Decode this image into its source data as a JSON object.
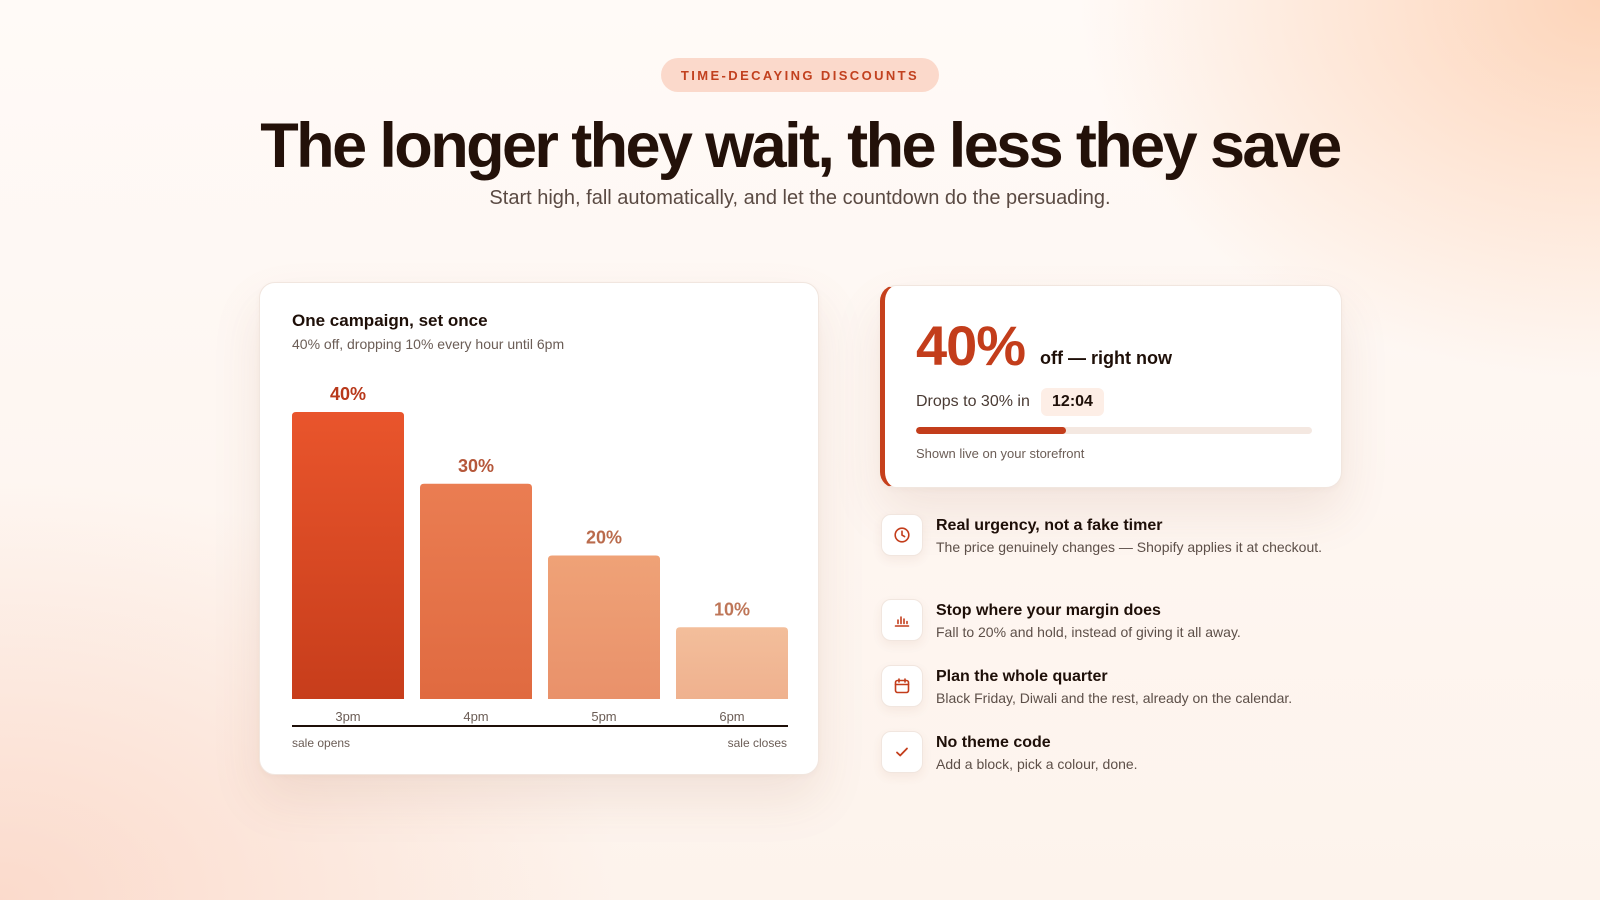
{
  "header": {
    "eyebrow": "TIME-DECAYING DISCOUNTS",
    "headline": "The longer they wait, the less they save",
    "subhead": "Start high, fall automatically, and let the countdown do the persuading."
  },
  "chart_card": {
    "title": "One campaign, set once",
    "subtitle": "40% off, dropping 10% every hour until 6pm",
    "footer_left": "sale opens",
    "footer_right": "sale closes"
  },
  "chart_data": {
    "type": "bar",
    "categories": [
      "3pm",
      "4pm",
      "5pm",
      "6pm"
    ],
    "values": [
      40,
      30,
      20,
      10
    ],
    "value_labels": [
      "40%",
      "30%",
      "20%",
      "10%"
    ],
    "title": "One campaign, set once",
    "subtitle": "40% off, dropping 10% every hour until 6pm",
    "xlabel": "",
    "ylabel": "",
    "ylim": [
      0,
      40
    ],
    "grid": false,
    "colors": {
      "bars_top": [
        "#e9552c",
        "#ea7d52",
        "#efa277",
        "#f3be9b"
      ],
      "bars_bottom": [
        "#c73d1b",
        "#e06a40",
        "#e9916a",
        "#efb18e"
      ],
      "labels": [
        "#b8381a",
        "#b5573a",
        "#ba6b4c",
        "#be7658"
      ]
    }
  },
  "live_card": {
    "percent": "40%",
    "off_label": "off — right now",
    "drops_label": "Drops to 30% in",
    "timer": "12:04",
    "progress": 0.38,
    "note": "Shown live on your storefront"
  },
  "features": [
    {
      "icon": "clock-icon",
      "title": "Real urgency, not a fake timer",
      "desc": "The price genuinely changes — Shopify applies it at checkout."
    },
    {
      "icon": "bar-chart-icon",
      "title": "Stop where your margin does",
      "desc": "Fall to 20% and hold, instead of giving it all away."
    },
    {
      "icon": "calendar-icon",
      "title": "Plan the whole quarter",
      "desc": "Black Friday, Diwali and the rest, already on the calendar."
    },
    {
      "icon": "check-icon",
      "title": "No theme code",
      "desc": "Add a block, pick a colour, done."
    }
  ],
  "colors": {
    "accent": "#c33d1b",
    "headline": "#231109",
    "eyebrow_bg": "#fbd9cb"
  }
}
